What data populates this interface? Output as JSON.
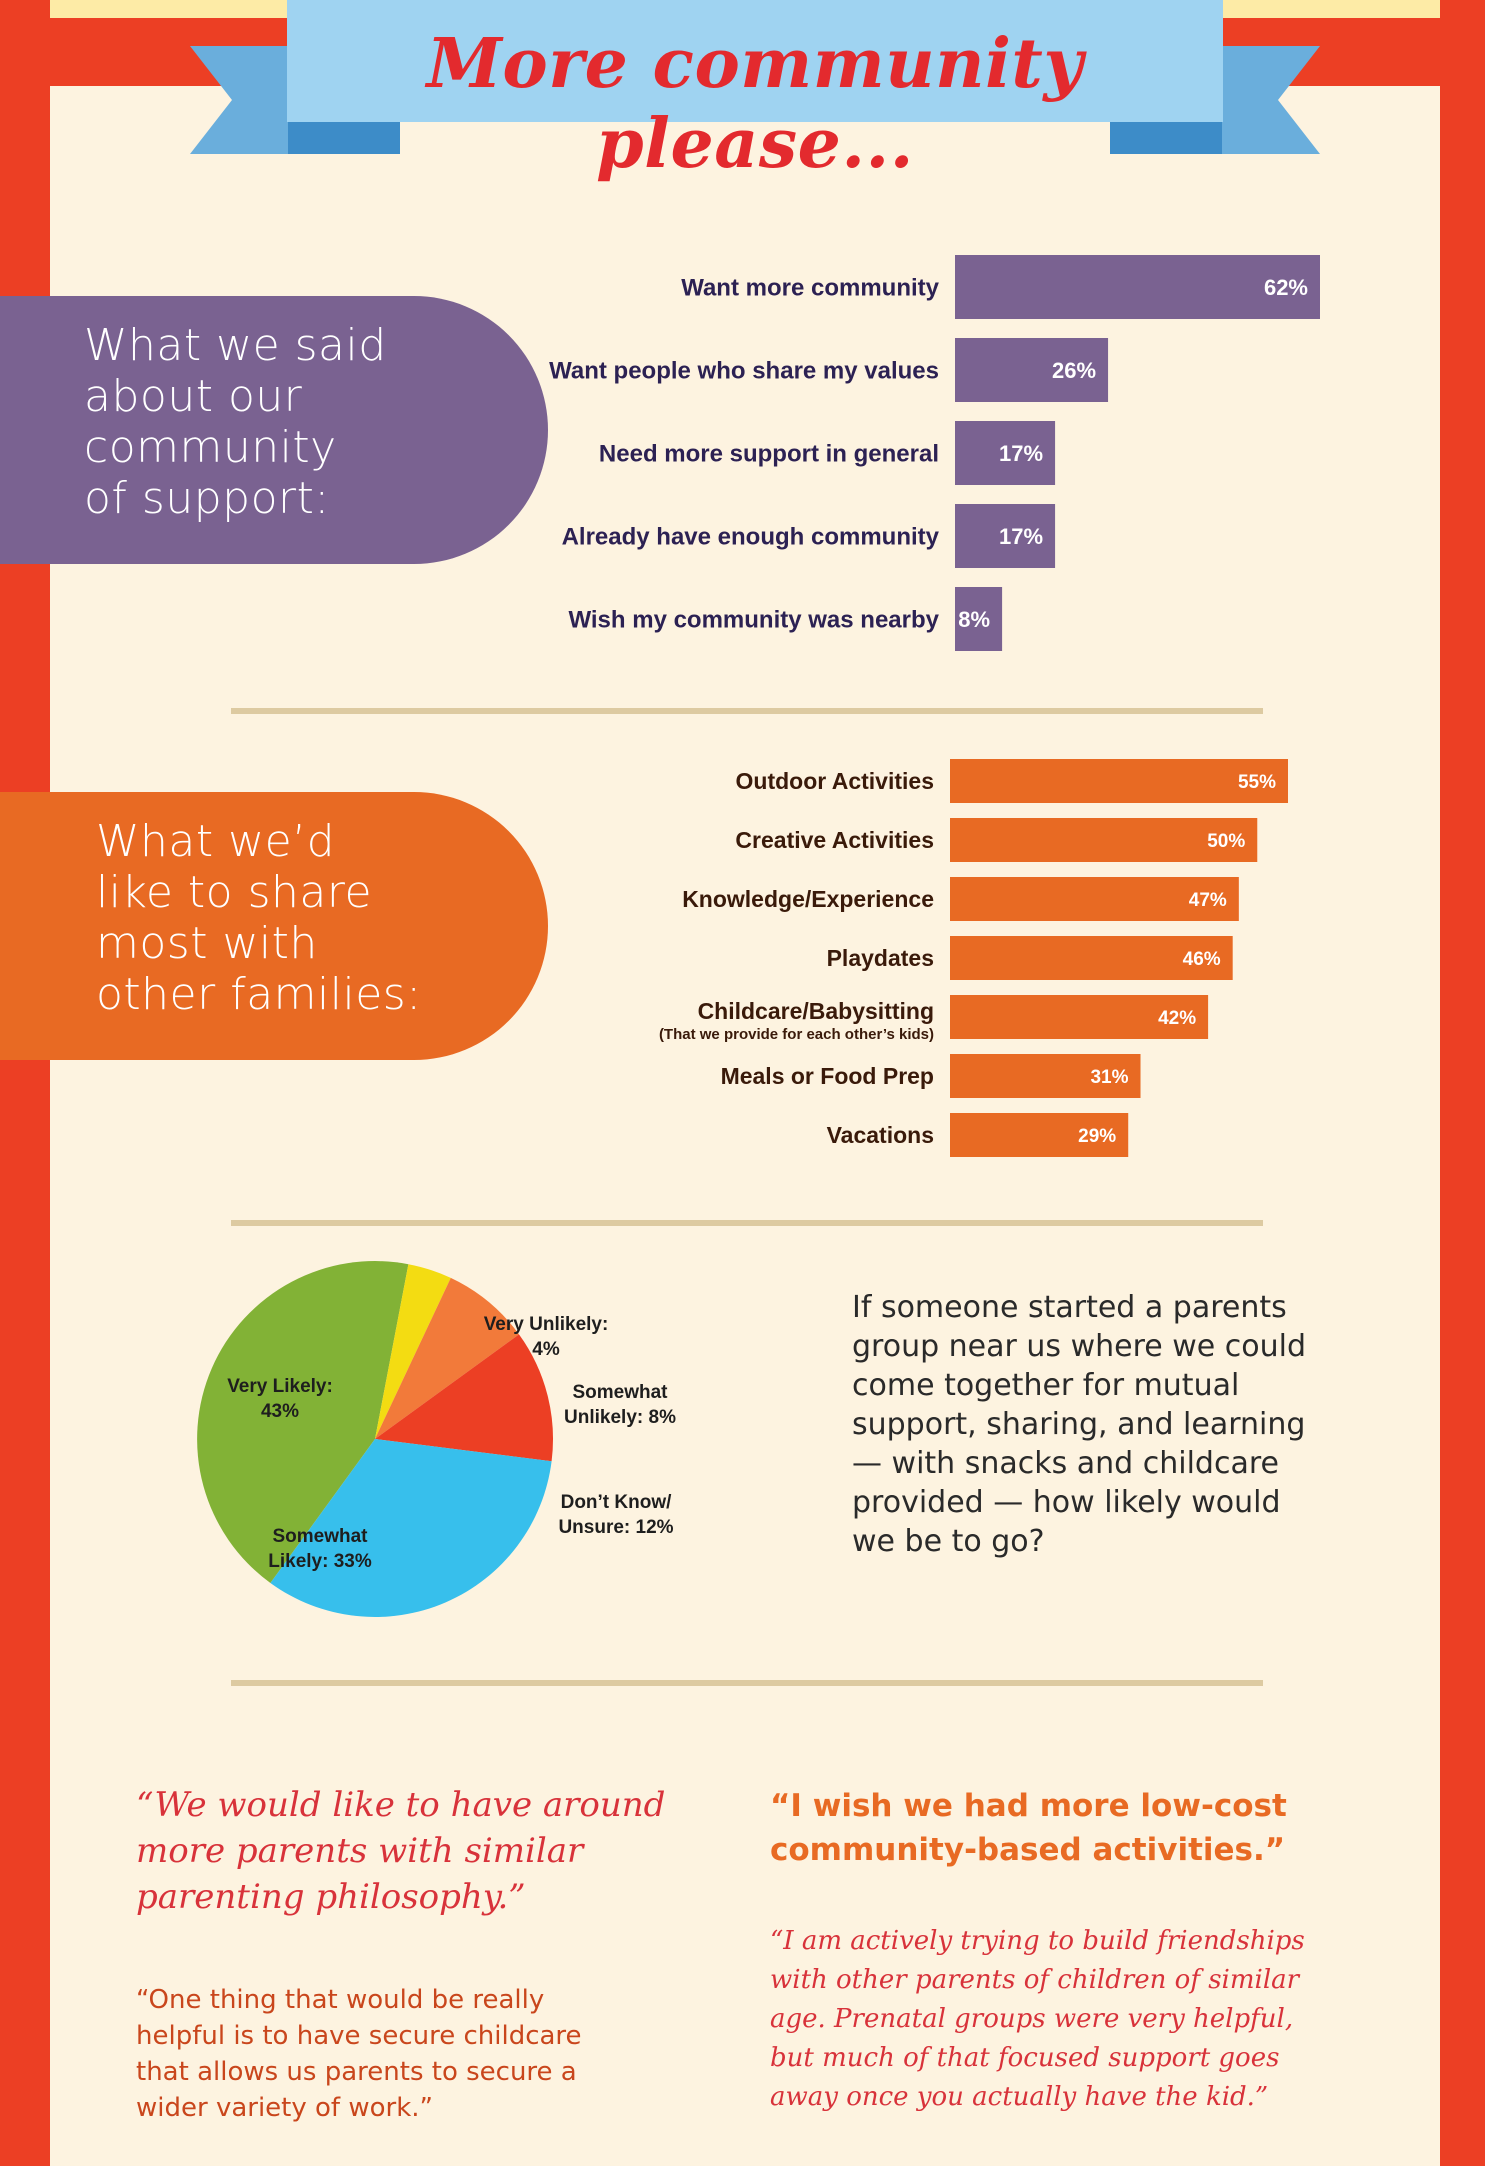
{
  "title": "More community please...",
  "section1": {
    "heading_lines": [
      "What we said",
      "about our",
      "community",
      "of support:"
    ]
  },
  "section2": {
    "heading_lines": [
      "What we’d",
      "like to share",
      "most with",
      "other families:"
    ]
  },
  "question_text": "If someone started a parents group near us where we could come together for mutual support, sharing, and learning — with snacks and childcare provided — how likely would we be to go?",
  "quotes": {
    "q1_lines": [
      "“We would like to have around",
      "more parents with similar",
      "parenting philosophy.”"
    ],
    "q2_lines": [
      "“One thing that would be really",
      "helpful is to have secure childcare",
      "that allows us parents to secure a",
      "wider variety of work.”"
    ],
    "q3_lines": [
      "“I wish we had more low-cost",
      "community-based activities.”"
    ],
    "q4_lines": [
      "“I am actively trying to build friendships",
      "with other parents of children of similar",
      "age. Prenatal groups were very helpful,",
      "but much of that focused support goes",
      "away once you actually have the kid.”"
    ]
  },
  "colors": {
    "purple": "#7a6291",
    "orange": "#e86a23",
    "red_frame": "#ec3f24",
    "ribbon_blue": "#9fd3f1",
    "pie_green": "#82b236",
    "pie_yellow": "#f3dc12",
    "pie_orange": "#f27a3a",
    "pie_red": "#ec3f24",
    "pie_blue": "#37bfec"
  },
  "chart_data": [
    {
      "type": "bar",
      "orientation": "horizontal",
      "categories": [
        "Want more community",
        "Want people who share my values",
        "Need more support in general",
        "Already have enough community",
        "Wish my community was nearby"
      ],
      "values": [
        62,
        26,
        17,
        17,
        8
      ],
      "value_labels": [
        "62%",
        "26%",
        "17%",
        "17%",
        "8%"
      ]
    },
    {
      "type": "bar",
      "orientation": "horizontal",
      "categories": [
        "Outdoor Activities",
        "Creative Activities",
        "Knowledge/Experience",
        "Playdates",
        "Childcare/Babysitting",
        "Meals or Food Prep",
        "Vacations"
      ],
      "category_notes": [
        "",
        "",
        "",
        "",
        "(That we provide for each other’s kids)",
        "",
        ""
      ],
      "values": [
        55,
        50,
        47,
        46,
        42,
        31,
        29
      ],
      "value_labels": [
        "55%",
        "50%",
        "47%",
        "46%",
        "42%",
        "31%",
        "29%"
      ]
    },
    {
      "type": "pie",
      "slices": [
        {
          "label": "Very Likely:",
          "value": 43,
          "value_label": "43%"
        },
        {
          "label": "Very Unlikely:",
          "value": 4,
          "value_label": "4%"
        },
        {
          "label": "Somewhat Unlikely:",
          "value": 8,
          "value_label": "8%"
        },
        {
          "label": "Don’t Know/ Unsure:",
          "value": 12,
          "value_label": "12%"
        },
        {
          "label": "Somewhat Likely:",
          "value": 33,
          "value_label": "33%"
        }
      ]
    }
  ]
}
